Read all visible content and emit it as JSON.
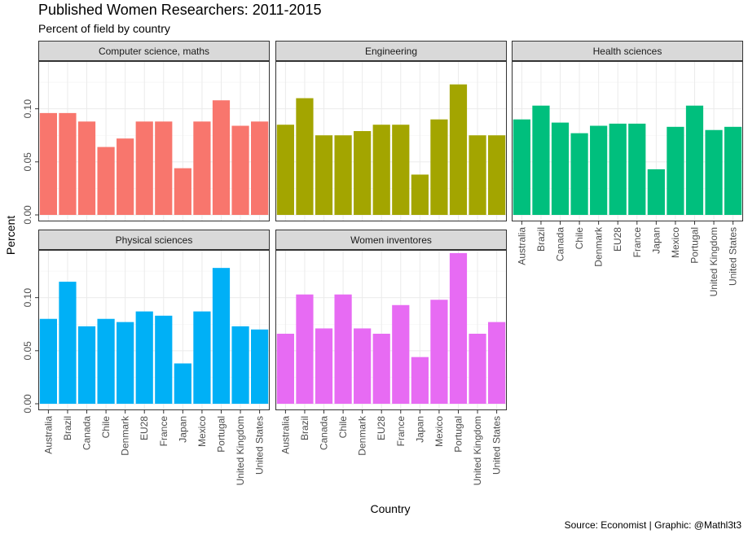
{
  "title": "Published Women Researchers: 2011-2015",
  "subtitle": "Percent of field by country",
  "caption": "Source: Economist | Graphic: @Mathl3t3",
  "chart_data": {
    "type": "bar",
    "xlabel": "Country",
    "ylabel": "Percent",
    "ylim": [
      0,
      0.145
    ],
    "yticks": [
      0.0,
      0.05,
      0.1
    ],
    "ytick_labels": [
      "0.00",
      "0.05",
      "0.10"
    ],
    "grid": true,
    "facet_layout": "3 columns x 2 rows",
    "categories": [
      "Australia",
      "Brazil",
      "Canada",
      "Chile",
      "Denmark",
      "EU28",
      "France",
      "Japan",
      "Mexico",
      "Portugal",
      "United Kingdom",
      "United States"
    ],
    "series": [
      {
        "name": "Computer science, maths",
        "color": "#F8766D",
        "values": [
          0.096,
          0.096,
          0.088,
          0.064,
          0.072,
          0.088,
          0.088,
          0.044,
          0.088,
          0.108,
          0.084,
          0.088
        ]
      },
      {
        "name": "Engineering",
        "color": "#A3A500",
        "values": [
          0.085,
          0.11,
          0.075,
          0.075,
          0.079,
          0.085,
          0.085,
          0.038,
          0.09,
          0.123,
          0.075,
          0.075
        ]
      },
      {
        "name": "Health sciences",
        "color": "#00BF7D",
        "values": [
          0.09,
          0.103,
          0.087,
          0.077,
          0.084,
          0.086,
          0.086,
          0.043,
          0.083,
          0.103,
          0.08,
          0.083
        ]
      },
      {
        "name": "Physical sciences",
        "color": "#00B0F6",
        "values": [
          0.08,
          0.115,
          0.073,
          0.08,
          0.077,
          0.087,
          0.083,
          0.038,
          0.087,
          0.128,
          0.073,
          0.07
        ]
      },
      {
        "name": "Women inventores",
        "color": "#E76BF3",
        "values": [
          0.066,
          0.103,
          0.071,
          0.103,
          0.071,
          0.066,
          0.093,
          0.044,
          0.098,
          0.142,
          0.066,
          0.077
        ]
      }
    ]
  }
}
